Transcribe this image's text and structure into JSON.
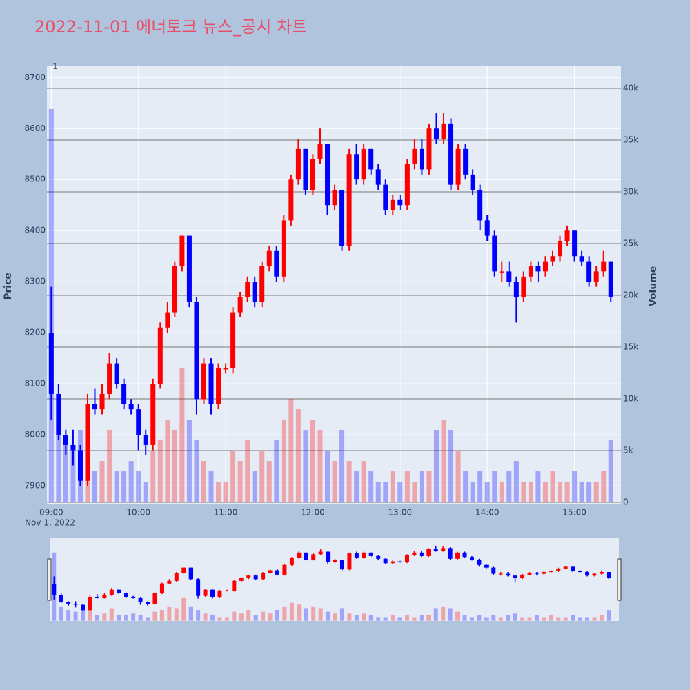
{
  "chart_data": {
    "type": "candlestick",
    "title": "2022-11-01 에너토크 뉴스_공시 차트",
    "annotation": "1",
    "x_date_label": "Nov 1, 2022",
    "ylabel": "Price",
    "y2label": "Volume",
    "increasing_color": "#ff0000",
    "decreasing_color": "#0000ff",
    "x": [
      "09:00",
      "09:05",
      "09:10",
      "09:15",
      "09:20",
      "09:25",
      "09:30",
      "09:35",
      "09:40",
      "09:45",
      "09:50",
      "09:55",
      "10:00",
      "10:05",
      "10:10",
      "10:15",
      "10:20",
      "10:25",
      "10:30",
      "10:35",
      "10:40",
      "10:45",
      "10:50",
      "10:55",
      "11:00",
      "11:05",
      "11:10",
      "11:15",
      "11:20",
      "11:25",
      "11:30",
      "11:35",
      "11:40",
      "11:45",
      "11:50",
      "11:55",
      "12:00",
      "12:05",
      "12:10",
      "12:15",
      "12:20",
      "12:25",
      "12:30",
      "12:35",
      "12:40",
      "12:45",
      "12:50",
      "12:55",
      "13:00",
      "13:05",
      "13:10",
      "13:15",
      "13:20",
      "13:25",
      "13:30",
      "13:35",
      "13:40",
      "13:45",
      "13:50",
      "13:55",
      "14:00",
      "14:05",
      "14:10",
      "14:15",
      "14:20",
      "14:25",
      "14:30",
      "14:35",
      "14:40",
      "14:45",
      "14:50",
      "14:55",
      "15:00",
      "15:05",
      "15:10",
      "15:15",
      "15:20",
      "15:25"
    ],
    "open": [
      8200,
      8080,
      8000,
      7980,
      7970,
      7910,
      8060,
      8050,
      8080,
      8140,
      8100,
      8060,
      8050,
      8000,
      7980,
      8100,
      8210,
      8240,
      8330,
      8390,
      8260,
      8070,
      8140,
      8060,
      8130,
      8130,
      8240,
      8270,
      8300,
      8260,
      8330,
      8360,
      8310,
      8420,
      8500,
      8560,
      8480,
      8540,
      8570,
      8450,
      8480,
      8370,
      8550,
      8500,
      8560,
      8520,
      8490,
      8440,
      8460,
      8450,
      8530,
      8560,
      8520,
      8600,
      8580,
      8610,
      8490,
      8560,
      8510,
      8480,
      8420,
      8390,
      8320,
      8320,
      8300,
      8270,
      8310,
      8330,
      8320,
      8340,
      8350,
      8380,
      8400,
      8350,
      8340,
      8300,
      8320,
      8340
    ],
    "high": [
      8290,
      8100,
      8010,
      8010,
      7980,
      8080,
      8090,
      8100,
      8160,
      8150,
      8110,
      8070,
      8060,
      8010,
      8110,
      8220,
      8260,
      8340,
      8390,
      8390,
      8270,
      8150,
      8150,
      8140,
      8140,
      8250,
      8280,
      8310,
      8310,
      8340,
      8370,
      8370,
      8430,
      8510,
      8580,
      8560,
      8550,
      8600,
      8570,
      8490,
      8480,
      8560,
      8570,
      8570,
      8560,
      8530,
      8500,
      8470,
      8470,
      8540,
      8580,
      8580,
      8610,
      8630,
      8630,
      8620,
      8570,
      8570,
      8520,
      8490,
      8430,
      8400,
      8340,
      8340,
      8310,
      8320,
      8340,
      8340,
      8350,
      8360,
      8390,
      8410,
      8400,
      8360,
      8350,
      8330,
      8360,
      8340
    ],
    "low": [
      8030,
      7990,
      7960,
      7940,
      7900,
      7900,
      8040,
      8040,
      8070,
      8090,
      8050,
      8040,
      7970,
      7960,
      7970,
      8090,
      8200,
      8230,
      8320,
      8250,
      8040,
      8060,
      8040,
      8050,
      8120,
      8120,
      8230,
      8260,
      8250,
      8250,
      8320,
      8300,
      8300,
      8410,
      8490,
      8470,
      8470,
      8530,
      8430,
      8440,
      8360,
      8360,
      8490,
      8490,
      8510,
      8480,
      8430,
      8430,
      8440,
      8440,
      8520,
      8510,
      8510,
      8570,
      8570,
      8480,
      8480,
      8500,
      8470,
      8400,
      8380,
      8310,
      8300,
      8290,
      8220,
      8260,
      8300,
      8300,
      8310,
      8330,
      8340,
      8370,
      8340,
      8330,
      8290,
      8290,
      8310,
      8260
    ],
    "close": [
      8080,
      8000,
      7980,
      7970,
      7910,
      8060,
      8050,
      8080,
      8140,
      8100,
      8060,
      8050,
      8000,
      7980,
      8100,
      8210,
      8240,
      8330,
      8390,
      8260,
      8070,
      8140,
      8060,
      8130,
      8130,
      8240,
      8270,
      8300,
      8260,
      8330,
      8360,
      8310,
      8420,
      8500,
      8560,
      8480,
      8540,
      8570,
      8450,
      8480,
      8370,
      8550,
      8500,
      8560,
      8520,
      8490,
      8440,
      8460,
      8450,
      8530,
      8560,
      8520,
      8600,
      8580,
      8610,
      8490,
      8560,
      8510,
      8480,
      8420,
      8390,
      8320,
      8320,
      8300,
      8270,
      8310,
      8330,
      8320,
      8340,
      8350,
      8380,
      8400,
      8350,
      8340,
      8300,
      8320,
      8340,
      8270
    ],
    "volume": [
      38000,
      8000,
      6000,
      5000,
      7000,
      6000,
      3000,
      4000,
      7000,
      3000,
      3000,
      4000,
      3000,
      2000,
      5000,
      6000,
      8000,
      7000,
      13000,
      8000,
      6000,
      4000,
      3000,
      2000,
      2000,
      5000,
      4000,
      6000,
      3000,
      5000,
      4000,
      6000,
      8000,
      10000,
      9000,
      7000,
      8000,
      7000,
      5000,
      4000,
      7000,
      4000,
      3000,
      4000,
      3000,
      2000,
      2000,
      3000,
      2000,
      3000,
      2000,
      3000,
      3000,
      7000,
      8000,
      7000,
      5000,
      3000,
      2000,
      3000,
      2000,
      3000,
      2000,
      3000,
      4000,
      2000,
      2000,
      3000,
      2000,
      3000,
      2000,
      2000,
      3000,
      2000,
      2000,
      2000,
      3000,
      6000
    ],
    "xlim": [
      "08:57",
      "15:32"
    ],
    "xticks": [
      "09:00",
      "10:00",
      "11:00",
      "12:00",
      "13:00",
      "14:00",
      "15:00"
    ],
    "ylim": [
      7865,
      8722
    ],
    "yticks": [
      7900,
      8000,
      8100,
      8200,
      8300,
      8400,
      8500,
      8600,
      8700
    ],
    "y2lim": [
      -130,
      42130
    ],
    "y2ticks": [
      0,
      {
        "value": 5000,
        "label": "5k"
      },
      {
        "value": 10000,
        "label": "10k"
      },
      {
        "value": 15000,
        "label": "15k"
      },
      {
        "value": 20000,
        "label": "20k"
      },
      {
        "value": 25000,
        "label": "25k"
      },
      {
        "value": 30000,
        "label": "30k"
      },
      {
        "value": 35000,
        "label": "35k"
      },
      {
        "value": 40000,
        "label": "40k"
      }
    ],
    "grid": true
  }
}
